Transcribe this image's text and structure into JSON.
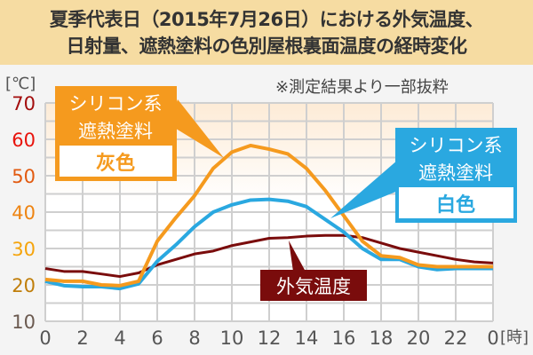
{
  "title": {
    "line1": "夏季代表日（2015年7月26日）における外気温度、",
    "line2": "日射量、遮熱塗料の色別屋根裏面温度の経時変化"
  },
  "note": "※測定結果より一部抜粋",
  "chart_data": {
    "type": "line",
    "ylabel": "[℃]",
    "xlabel": "[時]",
    "ylim": [
      10,
      70
    ],
    "xlim": [
      0,
      24
    ],
    "grid": true,
    "yticks": [
      {
        "label": "70",
        "value": 70,
        "color": "#a30d0d"
      },
      {
        "label": "60",
        "value": 60,
        "color": "#e8130c"
      },
      {
        "label": "50",
        "value": 50,
        "color": "#e25a10"
      },
      {
        "label": "40",
        "value": 40,
        "color": "#ee8412"
      },
      {
        "label": "30",
        "value": 30,
        "color": "#f5a40c"
      },
      {
        "label": "20",
        "value": 20,
        "color": "#c07e0a"
      },
      {
        "label": "10",
        "value": 10,
        "color": "#6b5a50"
      }
    ],
    "xticks": [
      "0",
      "2",
      "4",
      "6",
      "8",
      "10",
      "12",
      "14",
      "16",
      "18",
      "20",
      "22",
      "0"
    ],
    "x": [
      0,
      1,
      2,
      3,
      4,
      5,
      6,
      7,
      8,
      9,
      10,
      11,
      12,
      13,
      14,
      15,
      16,
      17,
      18,
      19,
      20,
      21,
      22,
      23,
      24
    ],
    "series": [
      {
        "key": "outside",
        "label": "外気温度",
        "color": "#7a0c0c",
        "values": [
          24.5,
          23.7,
          23.7,
          23,
          22.3,
          23.3,
          25.5,
          27,
          28.5,
          29.3,
          30.8,
          31.8,
          32.8,
          33,
          33.4,
          33.6,
          33.6,
          33,
          31.5,
          30,
          29,
          28,
          27,
          26.3,
          26
        ]
      },
      {
        "key": "white",
        "label_line1": "シリコン系",
        "label_line2": "遮熱塗料",
        "label_color": "白色",
        "color": "#2aa8e0",
        "values": [
          21,
          19.8,
          19.5,
          19.5,
          19,
          20.3,
          26.5,
          31,
          36,
          40,
          42,
          43.3,
          43.5,
          43,
          41.5,
          38,
          34.5,
          30,
          27,
          27,
          25,
          24.2,
          24.5,
          24.5,
          24.5
        ]
      },
      {
        "key": "gray",
        "label_line1": "シリコン系",
        "label_line2": "遮熱塗料",
        "label_color": "灰色",
        "color": "#f59a1e",
        "values": [
          21.5,
          21,
          21,
          20,
          19.8,
          21,
          32,
          38.5,
          44.5,
          52,
          56.5,
          58.3,
          57.3,
          56,
          52,
          46,
          39,
          32,
          28,
          27.5,
          25.5,
          25,
          25,
          25,
          25
        ]
      }
    ]
  }
}
